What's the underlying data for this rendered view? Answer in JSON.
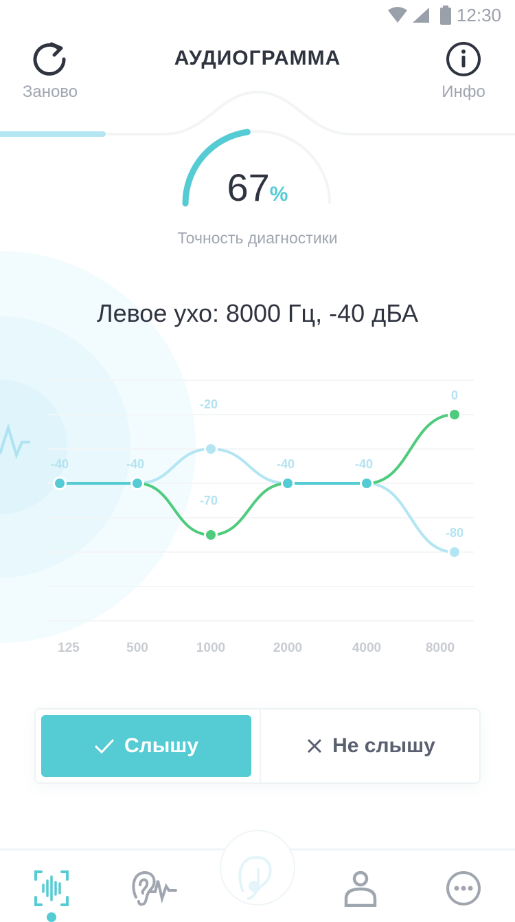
{
  "status_bar": {
    "time": "12:30"
  },
  "header": {
    "title": "АУДИОГРАММА",
    "left_label": "Заново",
    "right_label": "Инфо"
  },
  "progress": {
    "fraction": 0.2
  },
  "gauge": {
    "value": "67",
    "unit": "%",
    "label": "Точность диагностики",
    "fraction": 0.67
  },
  "current": {
    "text": "Левое ухо: 8000 Гц, -40 дБА"
  },
  "colors": {
    "accent": "#55cbd3",
    "green": "#4fcb7d",
    "light": "#b3e5f3",
    "text": "#2f3440"
  },
  "chart_data": {
    "type": "line",
    "categories": [
      "125",
      "500",
      "1000",
      "2000",
      "4000",
      "8000"
    ],
    "series": [
      {
        "values": [
          -40,
          -40,
          -20,
          -40,
          -40,
          -80
        ],
        "color": "#b3e5f3"
      },
      {
        "values": [
          null,
          -40,
          -70,
          -40,
          -40,
          0
        ],
        "color": "#4fcb7d"
      }
    ],
    "value_labels": [
      "-40",
      "-40",
      "-20",
      "-70",
      "-40",
      "-40",
      "0",
      "-80"
    ],
    "ylim": [
      -100,
      20
    ],
    "grid": true
  },
  "buttons": {
    "yes": "Слышу",
    "no": "Не слышу"
  },
  "nav": [
    "audiogram-icon",
    "ear-pulse-icon",
    "ear-music-icon",
    "profile-icon",
    "more-icon"
  ]
}
